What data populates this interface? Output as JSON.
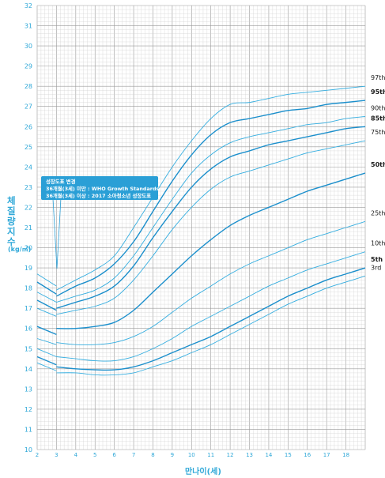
{
  "chart_data": {
    "type": "line",
    "ylabel": "체질량지수",
    "yunit": "(kg/㎡)",
    "xlabel": "만나이(세)",
    "xlim": [
      2,
      19
    ],
    "ylim": [
      10,
      32
    ],
    "x_ticks": [
      2,
      3,
      4,
      5,
      6,
      7,
      8,
      9,
      10,
      11,
      12,
      13,
      14,
      15,
      16,
      17,
      18
    ],
    "y_ticks": [
      10,
      11,
      12,
      13,
      14,
      15,
      16,
      17,
      18,
      19,
      20,
      21,
      22,
      23,
      24,
      25,
      26,
      27,
      28,
      29,
      30,
      31,
      32
    ],
    "grid": true,
    "annotation": {
      "title": "성장도표 변경",
      "line1": "36개월(3세) 미만 : WHO Growth Standards",
      "line2": "36개월(3세) 이상 : 2017 소아청소년 성장도표"
    },
    "under3_x": [
      2,
      3
    ],
    "x": [
      3,
      4,
      5,
      6,
      7,
      8,
      9,
      10,
      11,
      12,
      13,
      14,
      15,
      16,
      17,
      18,
      19
    ],
    "series": [
      {
        "name": "97th",
        "bold": false,
        "under3": [
          18.7,
          18.1
        ],
        "values": [
          17.9,
          18.4,
          18.9,
          19.6,
          21.0,
          22.5,
          24.0,
          25.3,
          26.4,
          27.1,
          27.2,
          27.4,
          27.6,
          27.7,
          27.8,
          27.9,
          28.0
        ]
      },
      {
        "name": "95th",
        "bold": true,
        "under3": [
          18.3,
          17.7
        ],
        "values": [
          17.6,
          18.1,
          18.5,
          19.2,
          20.3,
          21.8,
          23.3,
          24.6,
          25.6,
          26.2,
          26.4,
          26.6,
          26.8,
          26.9,
          27.1,
          27.2,
          27.3
        ]
      },
      {
        "name": "90th",
        "bold": false,
        "under3": [
          17.8,
          17.3
        ],
        "values": [
          17.3,
          17.6,
          17.9,
          18.5,
          19.6,
          21.0,
          22.4,
          23.7,
          24.6,
          25.2,
          25.5,
          25.7,
          25.9,
          26.1,
          26.2,
          26.4,
          26.5
        ]
      },
      {
        "name": "85th",
        "bold": true,
        "under3": [
          17.4,
          16.9
        ],
        "values": [
          17.0,
          17.3,
          17.6,
          18.1,
          19.1,
          20.5,
          21.8,
          23.0,
          23.9,
          24.5,
          24.8,
          25.1,
          25.3,
          25.5,
          25.7,
          25.9,
          26.0
        ]
      },
      {
        "name": "75th",
        "bold": false,
        "under3": [
          17.0,
          16.6
        ],
        "values": [
          16.7,
          16.9,
          17.1,
          17.5,
          18.4,
          19.6,
          20.9,
          22.0,
          22.9,
          23.5,
          23.8,
          24.1,
          24.4,
          24.7,
          24.9,
          25.1,
          25.3
        ]
      },
      {
        "name": "50th",
        "bold": true,
        "under3": [
          16.1,
          15.7
        ],
        "values": [
          16.0,
          16.0,
          16.1,
          16.3,
          16.9,
          17.8,
          18.7,
          19.6,
          20.4,
          21.1,
          21.6,
          22.0,
          22.4,
          22.8,
          23.1,
          23.4,
          23.7
        ]
      },
      {
        "name": "25th",
        "bold": false,
        "under3": [
          15.5,
          15.2
        ],
        "values": [
          15.3,
          15.2,
          15.2,
          15.3,
          15.6,
          16.1,
          16.8,
          17.5,
          18.1,
          18.7,
          19.2,
          19.6,
          20.0,
          20.4,
          20.7,
          21.0,
          21.3
        ]
      },
      {
        "name": "10th",
        "bold": false,
        "under3": [
          15.0,
          14.6
        ],
        "values": [
          14.6,
          14.5,
          14.4,
          14.4,
          14.6,
          15.0,
          15.5,
          16.1,
          16.6,
          17.1,
          17.6,
          18.1,
          18.5,
          18.9,
          19.2,
          19.5,
          19.8
        ]
      },
      {
        "name": "5th",
        "bold": true,
        "under3": [
          14.6,
          14.2
        ],
        "values": [
          14.1,
          14.0,
          13.95,
          13.95,
          14.1,
          14.4,
          14.8,
          15.2,
          15.6,
          16.1,
          16.6,
          17.1,
          17.6,
          18.0,
          18.4,
          18.7,
          19.0
        ]
      },
      {
        "name": "3rd",
        "bold": false,
        "under3": [
          14.3,
          13.9
        ],
        "values": [
          13.8,
          13.8,
          13.7,
          13.7,
          13.8,
          14.1,
          14.4,
          14.8,
          15.2,
          15.7,
          16.2,
          16.7,
          17.2,
          17.6,
          18.0,
          18.3,
          18.6
        ]
      }
    ]
  },
  "colors": {
    "line": "#35aee0",
    "bold_line": "#1b8fcc",
    "grid_major": "#9a9a9a",
    "grid_minor": "#d0d0d0",
    "label": "#2fa8d8",
    "note_bg": "#2a9fd6"
  }
}
